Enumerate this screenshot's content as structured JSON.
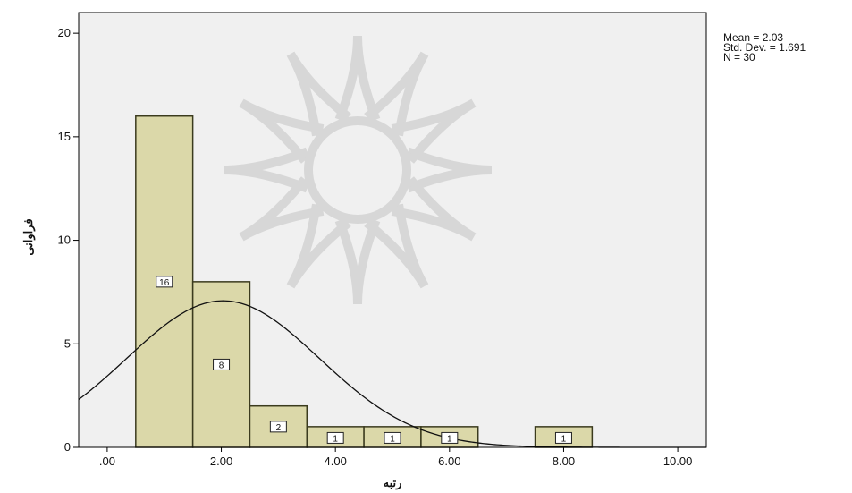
{
  "chart_data": {
    "type": "bar",
    "subtype": "histogram",
    "title": "",
    "xlabel": "رتبه",
    "ylabel": "فراوانی",
    "xlim": [
      -0.5,
      10.5
    ],
    "ylim": [
      0,
      21
    ],
    "x_ticks": [
      0,
      2,
      4,
      6,
      8,
      10
    ],
    "x_tick_labels": [
      ".00",
      "2.00",
      "4.00",
      "6.00",
      "8.00",
      "10.00"
    ],
    "y_ticks": [
      0,
      5,
      10,
      15,
      20
    ],
    "y_tick_labels": [
      "0",
      "5",
      "10",
      "15",
      "20"
    ],
    "bin_width": 1,
    "bins": [
      {
        "center": 1,
        "count": 16,
        "label": "16"
      },
      {
        "center": 2,
        "count": 8,
        "label": "8"
      },
      {
        "center": 3,
        "count": 2,
        "label": "2"
      },
      {
        "center": 4,
        "count": 1,
        "label": "1"
      },
      {
        "center": 5,
        "count": 1,
        "label": "1"
      },
      {
        "center": 6,
        "count": 1,
        "label": "1"
      },
      {
        "center": 8,
        "count": 1,
        "label": "1"
      }
    ],
    "normal_curve": {
      "mean": 2.03,
      "std": 1.691,
      "n": 30
    },
    "grid": false,
    "legend": "none"
  },
  "stats": {
    "mean": "Mean = 2.03",
    "std": "Std. Dev. = 1.691",
    "n": "N = 30"
  },
  "colors": {
    "plot_background": "#f0f0f0",
    "bar_fill": "#d8d5a1",
    "bar_stroke": "#3b3b1e",
    "curve": "#111111",
    "watermark": "#c8c8c8"
  }
}
